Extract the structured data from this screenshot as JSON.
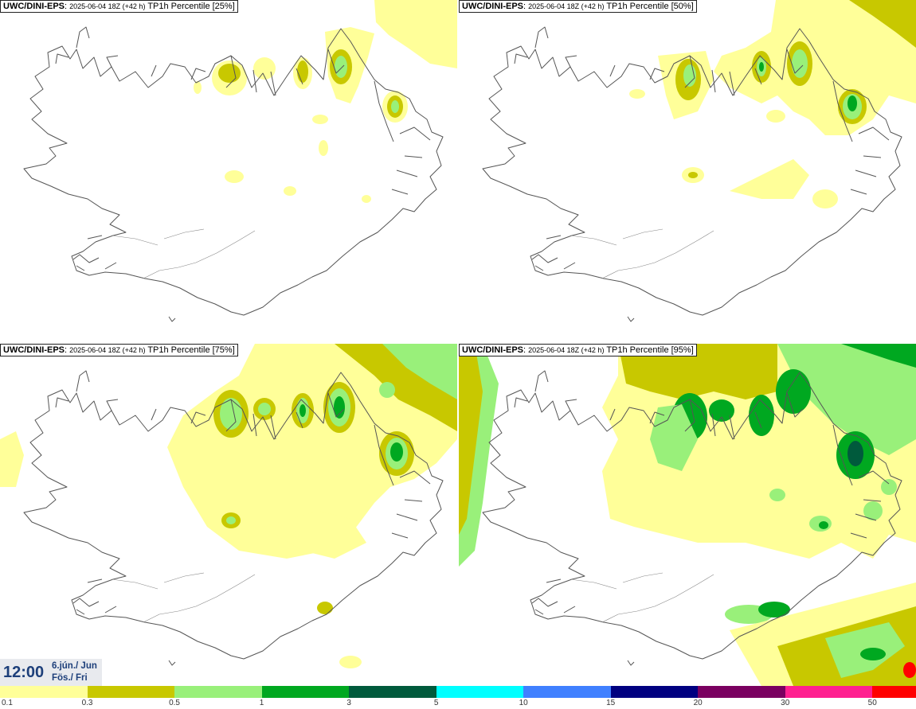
{
  "panels": [
    {
      "model": "UWC/DINI-EPS",
      "run": "2025-06-04 18Z (+42 h)",
      "product": "TP1h Percentile [25%]"
    },
    {
      "model": "UWC/DINI-EPS",
      "run": "2025-06-04 18Z (+42 h)",
      "product": "TP1h Percentile [50%]"
    },
    {
      "model": "UWC/DINI-EPS",
      "run": "2025-06-04 18Z (+42 h)",
      "product": "TP1h Percentile [75%]"
    },
    {
      "model": "UWC/DINI-EPS",
      "run": "2025-06-04 18Z (+42 h)",
      "product": "TP1h Percentile [95%]"
    }
  ],
  "valid_time": {
    "clock": "12:00",
    "date_line": "6.jún./ Jun",
    "day_line": "Fös./ Fri"
  },
  "legend": {
    "colors": [
      "#ffff99",
      "#c8c800",
      "#99f07a",
      "#00a820",
      "#005a3c",
      "#00ffff",
      "#4080ff",
      "#000080",
      "#7a0060",
      "#ff2090",
      "#ff0000"
    ],
    "ticks": [
      "0.1",
      "0.3",
      "0.5",
      "1",
      "3",
      "5",
      "10",
      "15",
      "20",
      "30",
      "50"
    ]
  },
  "map": {
    "land_outline": "#555555",
    "water": "#ffffff"
  }
}
